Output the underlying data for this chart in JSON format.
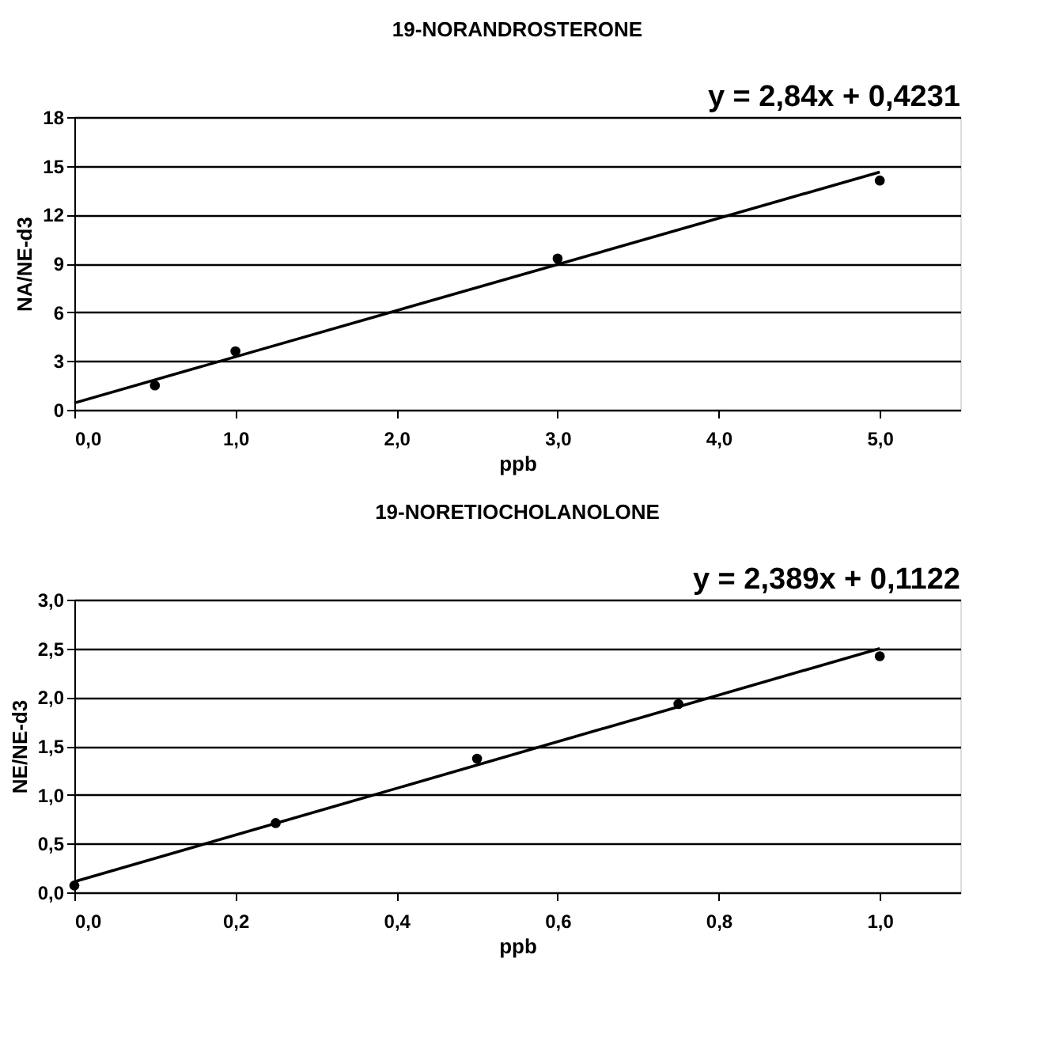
{
  "chart_data": [
    {
      "type": "scatter",
      "title": "19-NORANDROSTERONE",
      "xlabel": "ppb",
      "ylabel": "NA/NE-d3",
      "annotations": [
        "y = 2,84x + 0,4231"
      ],
      "xlim": [
        0,
        5.5
      ],
      "xticks": [
        {
          "value": 0,
          "label": "0,0"
        },
        {
          "value": 1,
          "label": "1,0"
        },
        {
          "value": 2,
          "label": "2,0"
        },
        {
          "value": 3,
          "label": "3,0"
        },
        {
          "value": 4,
          "label": "4,0"
        },
        {
          "value": 5,
          "label": "5,0"
        }
      ],
      "ylim": [
        0,
        18
      ],
      "yticks": [
        0,
        3,
        6,
        9,
        12,
        15,
        18
      ],
      "grid": "y",
      "series": [
        {
          "color": "#000000",
          "marker": "circle",
          "x": [
            0.5,
            1.0,
            3.0,
            5.0
          ],
          "values": [
            1.5,
            3.6,
            9.3,
            14.1
          ]
        },
        {
          "type": "line",
          "color": "#000000",
          "line_style": "solid",
          "x": [
            0,
            5
          ],
          "values": [
            0.42,
            14.62
          ]
        }
      ]
    },
    {
      "type": "scatter",
      "title": "19-NORETIOCHOLANOLONE",
      "xlabel": "ppb",
      "ylabel": "NE/NE-d3",
      "annotations": [
        "y = 2,389x + 0,1122"
      ],
      "xlim": [
        0,
        1.1
      ],
      "xticks": [
        {
          "value": 0,
          "label": "0,0"
        },
        {
          "value": 0.2,
          "label": "0,2"
        },
        {
          "value": 0.4,
          "label": "0,4"
        },
        {
          "value": 0.6,
          "label": "0,6"
        },
        {
          "value": 0.8,
          "label": "0,8"
        },
        {
          "value": 1.0,
          "label": "1,0"
        }
      ],
      "ylim": [
        0,
        3
      ],
      "yticks": [
        {
          "value": 0,
          "label": "0,0"
        },
        {
          "value": 0.5,
          "label": "0,5"
        },
        {
          "value": 1.0,
          "label": "1,0"
        },
        {
          "value": 1.5,
          "label": "1,5"
        },
        {
          "value": 2.0,
          "label": "2,0"
        },
        {
          "value": 2.5,
          "label": "2,5"
        },
        {
          "value": 3.0,
          "label": "3,0"
        }
      ],
      "grid": "y",
      "series": [
        {
          "color": "#000000",
          "marker": "circle",
          "x": [
            0,
            0.25,
            0.5,
            0.75,
            1.0
          ],
          "values": [
            0.07,
            0.71,
            1.37,
            1.93,
            2.42
          ]
        },
        {
          "type": "line",
          "color": "#000000",
          "line_style": "solid",
          "x": [
            0,
            1
          ],
          "values": [
            0.11,
            2.5
          ]
        }
      ]
    }
  ]
}
